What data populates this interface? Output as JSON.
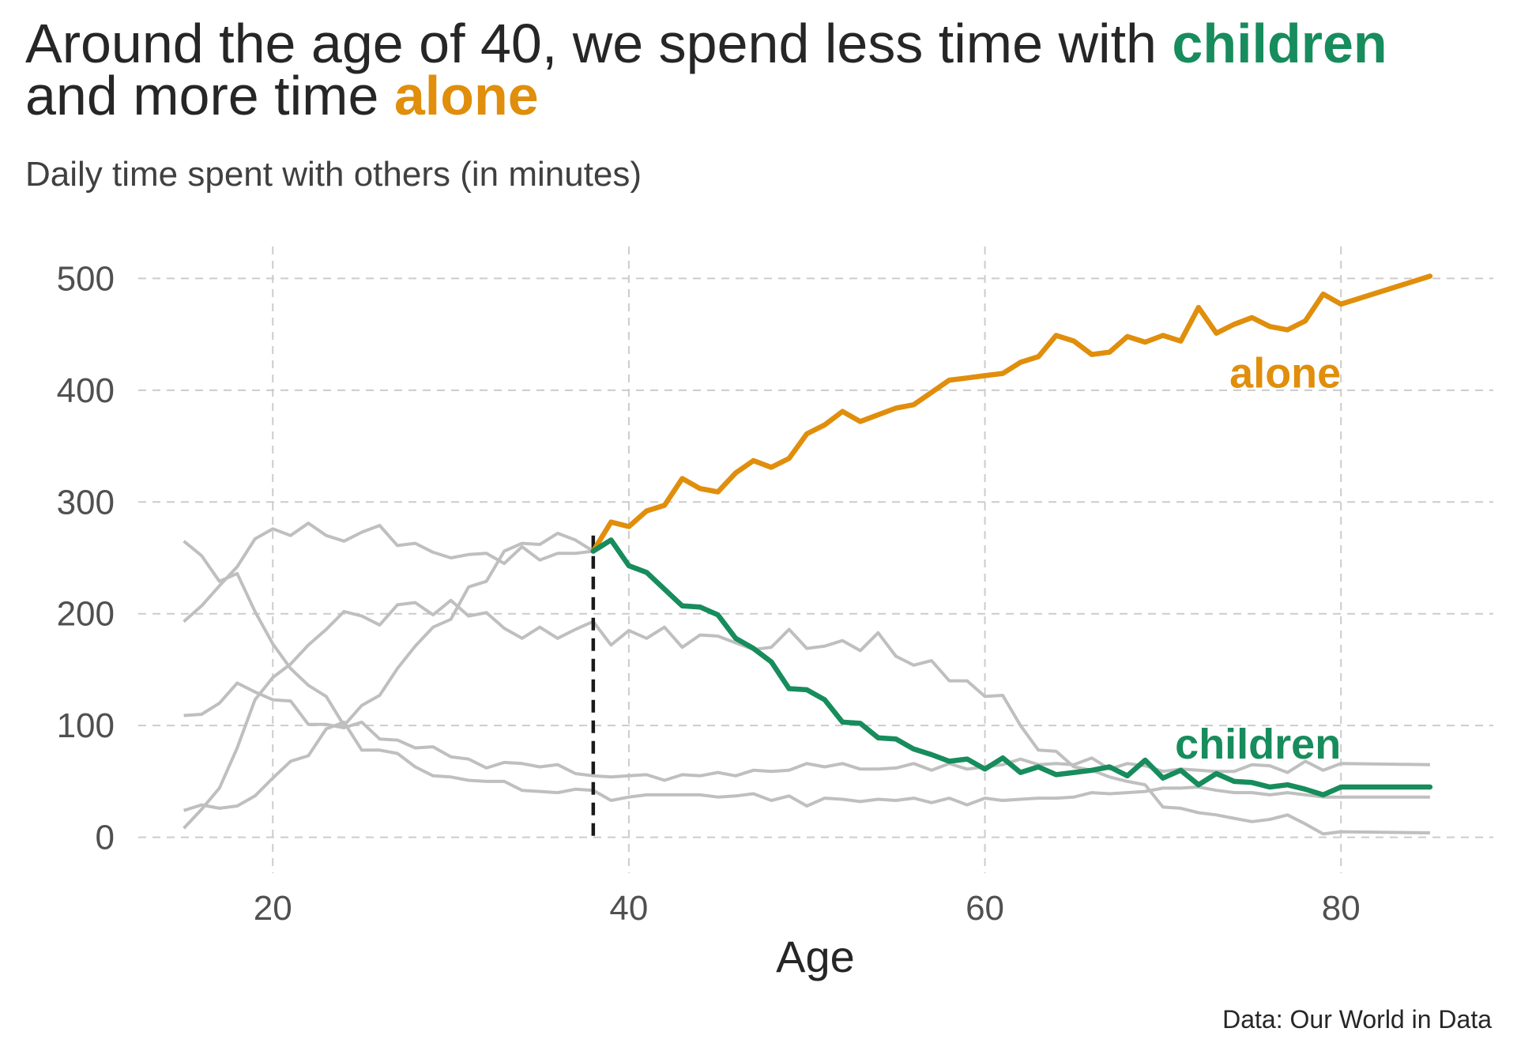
{
  "title": {
    "line1_prefix": "Around the age of 40, we spend less time with ",
    "line1_highlight": "children",
    "line2_prefix": "and more time ",
    "line2_highlight": "alone"
  },
  "subtitle": "Daily time spent with others (in minutes)",
  "caption": "Data: Our World in Data",
  "colors": {
    "alone": "#E08E0B",
    "children": "#178C5C",
    "other": "#BFBFBF",
    "threshold": "#1A1A1A",
    "grid": "#CCCCCC",
    "text": "#262626"
  },
  "chart_data": {
    "type": "line",
    "xlabel": "Age",
    "ylabel": "",
    "xlim": [
      12,
      89
    ],
    "ylim": [
      -25,
      525
    ],
    "xticks": [
      20,
      40,
      60,
      80
    ],
    "yticks": [
      0,
      100,
      200,
      300,
      400,
      500
    ],
    "grid": true,
    "threshold_x": 38,
    "annotations": [
      {
        "text": "alone",
        "series": "alone",
        "x": 80,
        "y": 415
      },
      {
        "text": "children",
        "series": "children",
        "x": 80,
        "y": 83
      }
    ],
    "highlighted_series": [
      {
        "name": "alone",
        "x": [
          38,
          39,
          40,
          41,
          42,
          43,
          44,
          45,
          46,
          47,
          48,
          49,
          50,
          51,
          52,
          53,
          54,
          55,
          56,
          57,
          58,
          59,
          60,
          61,
          62,
          63,
          64,
          65,
          66,
          67,
          68,
          69,
          70,
          71,
          72,
          73,
          74,
          75,
          76,
          77,
          78,
          79,
          80,
          85
        ],
        "values": [
          256,
          282,
          278,
          292,
          297,
          321,
          312,
          309,
          326,
          337,
          331,
          339,
          361,
          369,
          381,
          372,
          378,
          384,
          387,
          398,
          409,
          411,
          413,
          415,
          425,
          430,
          449,
          444,
          432,
          434,
          448,
          443,
          449,
          444,
          474,
          451,
          459,
          465,
          457,
          454,
          462,
          486,
          477,
          502
        ]
      },
      {
        "name": "children",
        "x": [
          38,
          39,
          40,
          41,
          42,
          43,
          44,
          45,
          46,
          47,
          48,
          49,
          50,
          51,
          52,
          53,
          54,
          55,
          56,
          57,
          58,
          59,
          60,
          61,
          62,
          63,
          64,
          65,
          66,
          67,
          68,
          69,
          70,
          71,
          72,
          73,
          74,
          75,
          76,
          77,
          78,
          79,
          80,
          85
        ],
        "values": [
          256,
          266,
          243,
          237,
          222,
          207,
          206,
          199,
          178,
          169,
          157,
          133,
          132,
          123,
          103,
          102,
          89,
          88,
          79,
          74,
          68,
          70,
          61,
          71,
          58,
          63,
          56,
          58,
          60,
          63,
          55,
          69,
          53,
          60,
          47,
          57,
          50,
          49,
          45,
          47,
          43,
          38,
          45,
          45
        ]
      }
    ],
    "background_series": [
      {
        "x": [
          15,
          16,
          17,
          18,
          19,
          20,
          21,
          22,
          23,
          24,
          25,
          26,
          27,
          28,
          29,
          30,
          31,
          32,
          33,
          34,
          35,
          36,
          37,
          38
        ],
        "values": [
          193,
          207,
          225,
          242,
          267,
          276,
          270,
          281,
          270,
          265,
          273,
          279,
          261,
          263,
          255,
          250,
          253,
          254,
          245,
          260,
          248,
          254,
          254,
          256
        ]
      },
      {
        "x": [
          15,
          16,
          17,
          18,
          19,
          20,
          21,
          22,
          23,
          24,
          25,
          26,
          27,
          28,
          29,
          30,
          31,
          32,
          33,
          34,
          35,
          36,
          37,
          38,
          39,
          40,
          41,
          42,
          43,
          44,
          45,
          46,
          47,
          48,
          49,
          50,
          51,
          52,
          53,
          54,
          55,
          56,
          57,
          58,
          59,
          60,
          61,
          62,
          63,
          64,
          65,
          66,
          67,
          68,
          69,
          70,
          71,
          72,
          73,
          74,
          75,
          76,
          77,
          78,
          79,
          80,
          85
        ],
        "values": [
          109,
          110,
          120,
          138,
          130,
          123,
          122,
          101,
          101,
          98,
          103,
          88,
          87,
          80,
          81,
          72,
          70,
          62,
          67,
          66,
          63,
          65,
          57,
          55,
          54,
          55,
          56,
          51,
          56,
          55,
          58,
          55,
          60,
          59,
          60,
          66,
          63,
          66,
          61,
          61,
          62,
          66,
          60,
          66,
          61,
          63,
          65,
          70,
          65,
          66,
          65,
          71,
          61,
          66,
          64,
          59,
          61,
          60,
          59,
          59,
          65,
          64,
          58,
          68,
          60,
          66,
          65
        ]
      },
      {
        "x": [
          15,
          16,
          17,
          18,
          19,
          20,
          21,
          22,
          23,
          24,
          25,
          26,
          27,
          28,
          29,
          30,
          31,
          32,
          33,
          34,
          35,
          36,
          37,
          38,
          39,
          40,
          41,
          42,
          43,
          44,
          45,
          46,
          47,
          48,
          49,
          50,
          51,
          52,
          53,
          54,
          55,
          56,
          57,
          58,
          59,
          60,
          61,
          62,
          63,
          64,
          65,
          66,
          67,
          68,
          69,
          70,
          71,
          72,
          73,
          74,
          75,
          76,
          77,
          78,
          79,
          80,
          85
        ],
        "values": [
          24,
          29,
          26,
          28,
          37,
          53,
          68,
          73,
          97,
          103,
          78,
          78,
          75,
          63,
          55,
          54,
          51,
          50,
          50,
          42,
          41,
          40,
          43,
          42,
          33,
          36,
          38,
          38,
          38,
          38,
          36,
          37,
          39,
          33,
          37,
          28,
          35,
          34,
          32,
          34,
          33,
          35,
          31,
          35,
          29,
          35,
          33,
          34,
          35,
          35,
          36,
          40,
          39,
          40,
          41,
          44,
          44,
          45,
          42,
          40,
          40,
          38,
          40,
          38,
          36,
          36,
          36
        ]
      },
      {
        "x": [
          15,
          16,
          17,
          18,
          19,
          20,
          21,
          22,
          23,
          24,
          25,
          26,
          27,
          28,
          29,
          30,
          31,
          32,
          33,
          34,
          35,
          36,
          37,
          38,
          39,
          40,
          41,
          42,
          43,
          44,
          45,
          46,
          47,
          48,
          49,
          50,
          51,
          52,
          53,
          54,
          55,
          56,
          57,
          58,
          59,
          60,
          61,
          62,
          63,
          64,
          65,
          66,
          67,
          68,
          69,
          70,
          71,
          72,
          73,
          74,
          75,
          76,
          77,
          78,
          79,
          80,
          85
        ],
        "values": [
          8,
          25,
          44,
          80,
          123,
          143,
          155,
          172,
          186,
          202,
          198,
          190,
          208,
          210,
          199,
          212,
          198,
          201,
          187,
          178,
          188,
          178,
          186,
          193,
          172,
          185,
          178,
          188,
          170,
          181,
          180,
          174,
          168,
          170,
          186,
          169,
          171,
          176,
          167,
          183,
          162,
          154,
          158,
          140,
          140,
          126,
          127,
          100,
          78,
          77,
          63,
          60,
          54,
          50,
          47,
          27,
          26,
          22,
          20,
          17,
          14,
          16,
          20,
          12,
          3,
          5,
          4
        ]
      },
      {
        "x": [
          15,
          16,
          17,
          18,
          19,
          20,
          21,
          22,
          23,
          24,
          25,
          26,
          27,
          28,
          29,
          30,
          31,
          32,
          33,
          34,
          35,
          36,
          37,
          38
        ],
        "values": [
          265,
          252,
          229,
          236,
          202,
          173,
          151,
          136,
          126,
          100,
          118,
          127,
          151,
          171,
          188,
          195,
          224,
          229,
          256,
          263,
          262,
          272,
          266,
          256
        ]
      }
    ]
  }
}
